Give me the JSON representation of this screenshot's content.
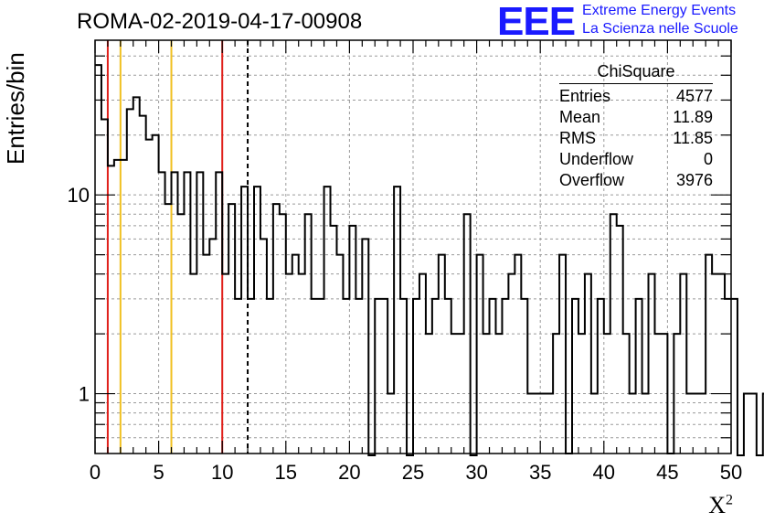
{
  "title": "ROMA-02-2019-04-17-00908",
  "logo": {
    "mark": "EEE",
    "line1": "Extreme Energy Events",
    "line2": "La Scienza nelle Scuole"
  },
  "stats": {
    "name": "ChiSquare",
    "rows": [
      {
        "label": "Entries",
        "value": "4577"
      },
      {
        "label": "Mean",
        "value": "11.89"
      },
      {
        "label": "RMS",
        "value": "11.85"
      },
      {
        "label": "Underflow",
        "value": "0"
      },
      {
        "label": "Overflow",
        "value": "3976"
      }
    ]
  },
  "colors": {
    "histogram": "#000000",
    "red_line": "#e0201b",
    "yellow_line": "#f0c020",
    "grid": "#9a9a9a",
    "logo": "#1a1aff"
  },
  "chart_data": {
    "type": "histogram",
    "ylabel": "Entries/bin",
    "xlabel": "X",
    "xlabel_superscript": "2",
    "xlim": [
      0,
      50
    ],
    "ylim": [
      0.5,
      60
    ],
    "y_scale": "log",
    "grid": true,
    "bin_width": 0.5,
    "x_ticks": [
      "0",
      "5",
      "10",
      "15",
      "20",
      "25",
      "30",
      "35",
      "40",
      "45",
      "50"
    ],
    "y_ticks": [
      {
        "value": 1,
        "label": "1"
      },
      {
        "value": 10,
        "label": "10"
      }
    ],
    "values": [
      45,
      24,
      14,
      15,
      15,
      27,
      31,
      25,
      19,
      20,
      13,
      9,
      13,
      8,
      13,
      4,
      13,
      5,
      6,
      13,
      4,
      9,
      3,
      11,
      3,
      11,
      6,
      3,
      9,
      8,
      4,
      5,
      4,
      8,
      3,
      3,
      11,
      7,
      5,
      3,
      7,
      3,
      6,
      0,
      3,
      3,
      1,
      11,
      3,
      0,
      3,
      4,
      2,
      3,
      5,
      3,
      2,
      2,
      8,
      0,
      5,
      2,
      3,
      2,
      3,
      4,
      5,
      3,
      1,
      1,
      1,
      1,
      2,
      5,
      0.5,
      3,
      2,
      4,
      1,
      3,
      2,
      8,
      7,
      2,
      1,
      3,
      1,
      4,
      2,
      2,
      0.5,
      2,
      4,
      1,
      1,
      1,
      5,
      4,
      4,
      3,
      3,
      0,
      1,
      1,
      0,
      1
    ],
    "vertical_lines": [
      {
        "x": 1,
        "color": "red",
        "style": "solid"
      },
      {
        "x": 2,
        "color": "yellow",
        "style": "solid"
      },
      {
        "x": 6,
        "color": "yellow",
        "style": "solid"
      },
      {
        "x": 10,
        "color": "red",
        "style": "solid"
      },
      {
        "x": 12,
        "color": "black",
        "style": "dashed"
      }
    ]
  }
}
